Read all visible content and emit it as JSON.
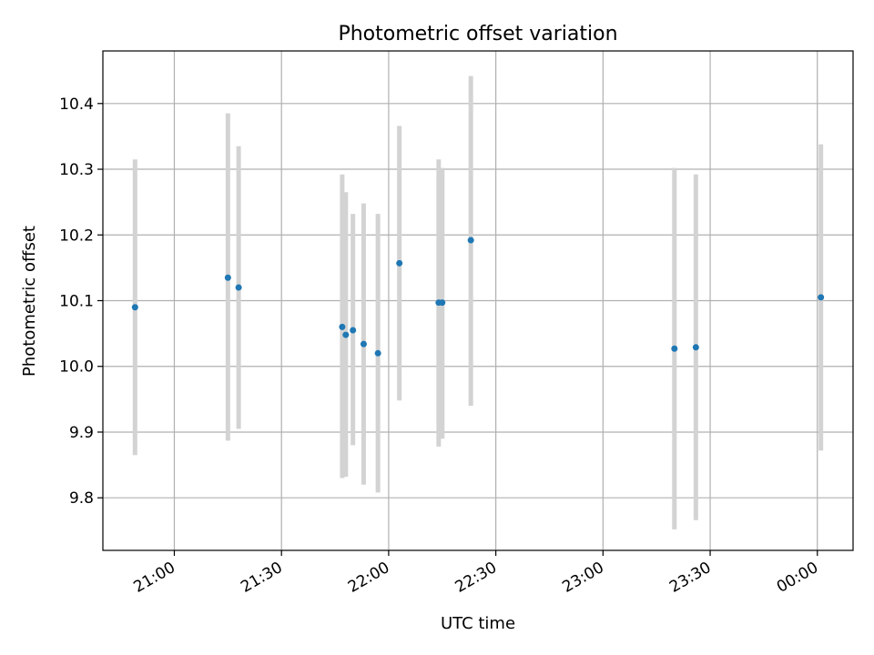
{
  "chart_data": {
    "type": "scatter",
    "title": "Photometric offset variation",
    "xlabel": "UTC time",
    "ylabel": "Photometric offset",
    "grid": true,
    "x_range": [
      "20:40",
      "00:10"
    ],
    "ylim": [
      9.72,
      10.48
    ],
    "y_ticks": [
      9.8,
      9.9,
      10.0,
      10.1,
      10.2,
      10.3,
      10.4
    ],
    "y_tick_labels": [
      "9.8",
      "9.9",
      "10.0",
      "10.1",
      "10.2",
      "10.3",
      "10.4"
    ],
    "x_ticks": [
      "21:00",
      "21:30",
      "22:00",
      "22:30",
      "23:00",
      "23:30",
      "00:00"
    ],
    "x_tick_labels": [
      "21:00",
      "21:30",
      "22:00",
      "22:30",
      "23:00",
      "23:30",
      "00:00"
    ],
    "series": [
      {
        "marker_color": "#1f77b4",
        "errorbar_color": "#d3d3d3",
        "points": [
          {
            "x": "20:49",
            "y": 10.09,
            "yerr_low": 9.865,
            "yerr_high": 10.315
          },
          {
            "x": "21:15",
            "y": 10.135,
            "yerr_low": 9.887,
            "yerr_high": 10.385
          },
          {
            "x": "21:18",
            "y": 10.12,
            "yerr_low": 9.905,
            "yerr_high": 10.335
          },
          {
            "x": "21:47",
            "y": 10.06,
            "yerr_low": 9.83,
            "yerr_high": 10.292
          },
          {
            "x": "21:48",
            "y": 10.048,
            "yerr_low": 9.832,
            "yerr_high": 10.265
          },
          {
            "x": "21:50",
            "y": 10.055,
            "yerr_low": 9.88,
            "yerr_high": 10.232
          },
          {
            "x": "21:53",
            "y": 10.034,
            "yerr_low": 9.82,
            "yerr_high": 10.248
          },
          {
            "x": "21:57",
            "y": 10.02,
            "yerr_low": 9.808,
            "yerr_high": 10.232
          },
          {
            "x": "22:03",
            "y": 10.157,
            "yerr_low": 9.948,
            "yerr_high": 10.366
          },
          {
            "x": "22:14",
            "y": 10.097,
            "yerr_low": 9.878,
            "yerr_high": 10.315
          },
          {
            "x": "22:15",
            "y": 10.097,
            "yerr_low": 9.89,
            "yerr_high": 10.302
          },
          {
            "x": "22:23",
            "y": 10.192,
            "yerr_low": 9.94,
            "yerr_high": 10.442
          },
          {
            "x": "23:20",
            "y": 10.027,
            "yerr_low": 9.752,
            "yerr_high": 10.302
          },
          {
            "x": "23:26",
            "y": 10.029,
            "yerr_low": 9.766,
            "yerr_high": 10.292
          },
          {
            "x": "00:01",
            "y": 10.105,
            "yerr_low": 9.872,
            "yerr_high": 10.338
          }
        ]
      }
    ]
  }
}
